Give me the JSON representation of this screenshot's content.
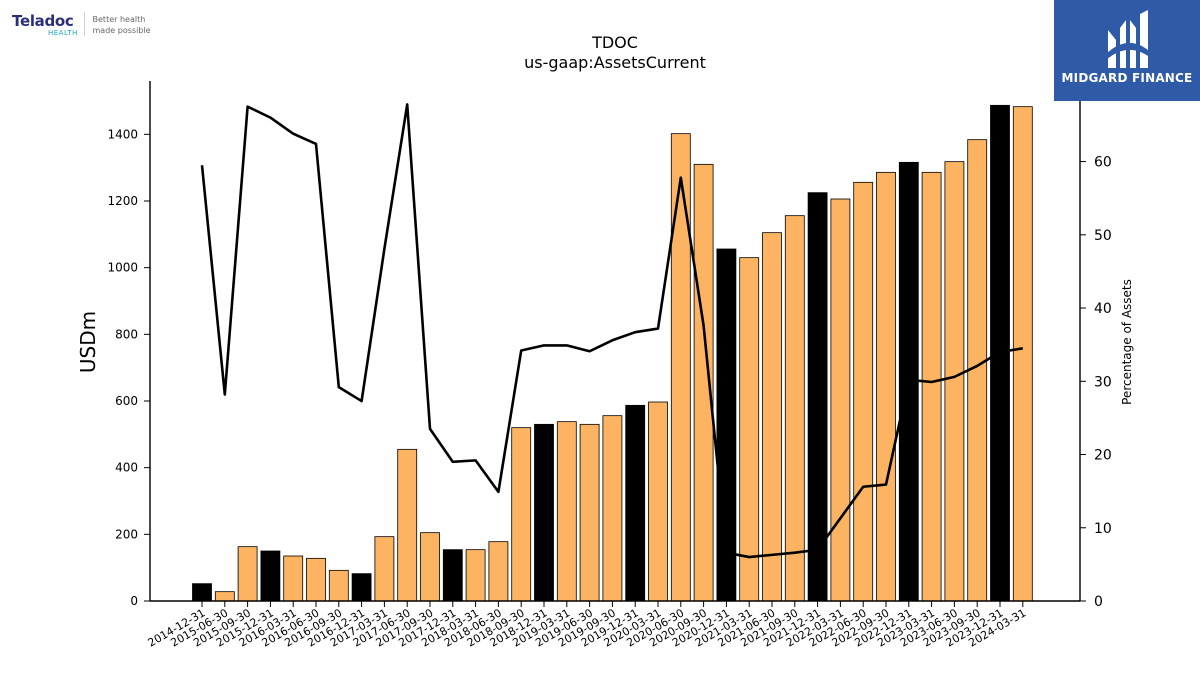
{
  "chart_data": {
    "type": "bar",
    "title": "TDOC",
    "subtitle": "us-gaap:AssetsCurrent",
    "ylabel": "USDm",
    "y2label": "Percentage of Assets",
    "ylim": [
      0,
      1560
    ],
    "y2lim": [
      0,
      71
    ],
    "yticks": [
      0,
      200,
      400,
      600,
      800,
      1000,
      1200,
      1400
    ],
    "y2ticks": [
      0,
      10,
      20,
      30,
      40,
      50,
      60
    ],
    "grid": false,
    "categories": [
      "2014-12-31",
      "2015-06-30",
      "2015-09-30",
      "2015-12-31",
      "2016-03-31",
      "2016-06-30",
      "2016-09-30",
      "2016-12-31",
      "2017-03-31",
      "2017-06-30",
      "2017-09-30",
      "2017-12-31",
      "2018-03-31",
      "2018-06-30",
      "2018-09-30",
      "2018-12-31",
      "2019-03-31",
      "2019-06-30",
      "2019-09-30",
      "2019-12-31",
      "2020-03-31",
      "2020-06-30",
      "2020-09-30",
      "2020-12-31",
      "2021-03-31",
      "2021-06-30",
      "2021-09-30",
      "2021-12-31",
      "2022-03-31",
      "2022-06-30",
      "2022-09-30",
      "2022-12-31",
      "2023-03-31",
      "2023-06-30",
      "2023-09-30",
      "2023-12-31",
      "2024-03-31"
    ],
    "series": [
      {
        "values": [
          52,
          28,
          163,
          150,
          135,
          128,
          92,
          82,
          193,
          455,
          205,
          154,
          154,
          178,
          520,
          530,
          538,
          530,
          556,
          587,
          597,
          1402,
          1310,
          1056,
          1030,
          1105,
          1156,
          1225,
          1206,
          1256,
          1286,
          1316,
          1286,
          1318,
          1384,
          1487,
          1483
        ],
        "highlight": [
          true,
          false,
          false,
          true,
          false,
          false,
          false,
          true,
          false,
          false,
          false,
          true,
          false,
          false,
          false,
          true,
          false,
          false,
          false,
          true,
          false,
          false,
          false,
          true,
          false,
          false,
          false,
          true,
          false,
          false,
          false,
          true,
          false,
          false,
          false,
          true,
          false
        ],
        "color": "#fdb462",
        "highlight_color": "#000000"
      },
      {
        "type": "line",
        "axis": "right",
        "color": "#000000",
        "values": [
          59.5,
          28.2,
          67.5,
          66.0,
          63.8,
          62.4,
          29.2,
          27.3,
          48.1,
          67.8,
          23.5,
          19.0,
          19.2,
          14.9,
          34.2,
          34.9,
          34.9,
          34.1,
          35.6,
          36.7,
          37.2,
          57.8,
          37.6,
          6.6,
          6.0,
          6.3,
          6.6,
          7.0,
          11.3,
          15.6,
          15.9,
          30.2,
          29.9,
          30.6,
          32.1,
          34.0,
          34.5
        ]
      }
    ]
  },
  "branding": {
    "left_name": "Teladoc",
    "left_sub": "HEALTH",
    "left_tagline_1": "Better health",
    "left_tagline_2": "made possible",
    "right_name": "MIDGARD FINANCE"
  }
}
